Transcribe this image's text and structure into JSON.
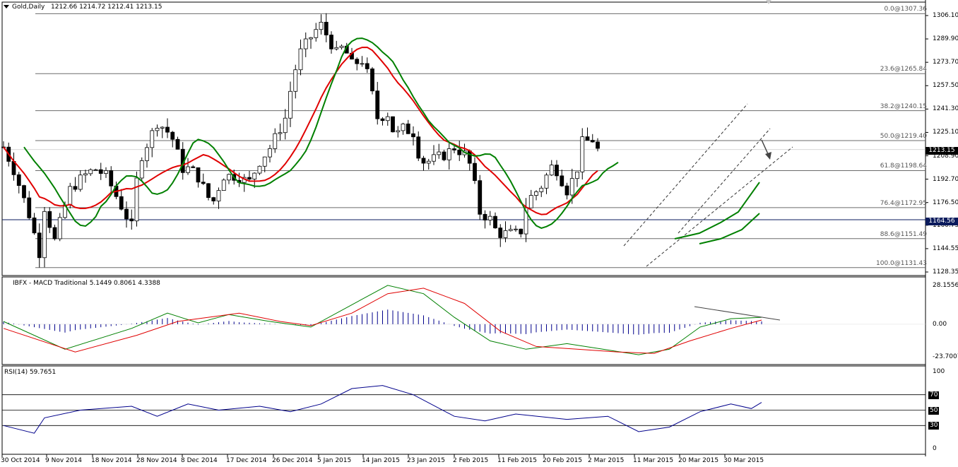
{
  "header": {
    "symbol": "Gold,Daily",
    "ohlc": "1212.66 1214.72 1212.41 1213.15"
  },
  "price_axis": {
    "ticks": [
      "1306.10",
      "1289.90",
      "1273.70",
      "1257.50",
      "1241.30",
      "1225.10",
      "1208.90",
      "1192.70",
      "1176.50",
      "1160.75",
      "1144.55",
      "1128.35"
    ],
    "current_price": "1213.15",
    "horizontal_line_price": "1164.56"
  },
  "fib_levels": [
    {
      "label": "0.0@1307.36",
      "value": 1307.36
    },
    {
      "label": "23.6@1265.84",
      "value": 1265.84
    },
    {
      "label": "38.2@1240.15",
      "value": 1240.15
    },
    {
      "label": "50.0@1219.40",
      "value": 1219.4
    },
    {
      "label": "61.8@1198.64",
      "value": 1198.64
    },
    {
      "label": "76.4@1172.95",
      "value": 1172.95
    },
    {
      "label": "88.6@1151.49",
      "value": 1151.49
    },
    {
      "label": "100.0@1131.43",
      "value": 1131.43
    }
  ],
  "macd_pane": {
    "title": "IBFX - MACD Traditional 5.1449 0.8061 4.3388",
    "ticks": [
      "28.1556",
      "0.00",
      "-23.7007"
    ]
  },
  "rsi_pane": {
    "title": "RSI(14) 59.7651",
    "ticks": [
      "100",
      "70",
      "50",
      "30",
      "0"
    ]
  },
  "date_axis": [
    "30 Oct 2014",
    "9 Nov 2014",
    "18 Nov 2014",
    "28 Nov 2014",
    "8 Dec 2014",
    "17 Dec 2014",
    "26 Dec 2014",
    "5 Jan 2015",
    "14 Jan 2015",
    "23 Jan 2015",
    "2 Feb 2015",
    "11 Feb 2015",
    "20 Feb 2015",
    "2 Mar 2015",
    "11 Mar 2015",
    "20 Mar 2015",
    "30 Mar 2015"
  ],
  "colors": {
    "fast_ma": "#e00000",
    "slow_ma": "#008000",
    "ma_flat": "#ffff00",
    "macd_line": "#008000",
    "signal_line": "#e00000",
    "histogram": "#00008b",
    "rsi_line": "#00008b"
  },
  "chart_data": [
    {
      "type": "candlestick",
      "title": "Gold,Daily",
      "ylim": [
        1125,
        1315
      ],
      "close_path": [
        {
          "x": "2014-10-27",
          "y": 1215
        },
        {
          "x": "2014-10-30",
          "y": 1198
        },
        {
          "x": "2014-11-03",
          "y": 1168
        },
        {
          "x": "2014-11-06",
          "y": 1140
        },
        {
          "x": "2014-11-07",
          "y": 1175
        },
        {
          "x": "2014-11-10",
          "y": 1150
        },
        {
          "x": "2014-11-14",
          "y": 1185
        },
        {
          "x": "2014-11-18",
          "y": 1195
        },
        {
          "x": "2014-11-21",
          "y": 1200
        },
        {
          "x": "2014-11-24",
          "y": 1195
        },
        {
          "x": "2014-11-28",
          "y": 1175
        },
        {
          "x": "2014-12-01",
          "y": 1160
        },
        {
          "x": "2014-12-03",
          "y": 1205
        },
        {
          "x": "2014-12-08",
          "y": 1232
        },
        {
          "x": "2014-12-10",
          "y": 1228
        },
        {
          "x": "2014-12-12",
          "y": 1222
        },
        {
          "x": "2014-12-15",
          "y": 1200
        },
        {
          "x": "2014-12-17",
          "y": 1200
        },
        {
          "x": "2014-12-19",
          "y": 1195
        },
        {
          "x": "2014-12-23",
          "y": 1175
        },
        {
          "x": "2014-12-26",
          "y": 1195
        },
        {
          "x": "2014-12-30",
          "y": 1195
        },
        {
          "x": "2015-01-02",
          "y": 1190
        },
        {
          "x": "2015-01-05",
          "y": 1205
        },
        {
          "x": "2015-01-08",
          "y": 1215
        },
        {
          "x": "2015-01-12",
          "y": 1235
        },
        {
          "x": "2015-01-14",
          "y": 1262
        },
        {
          "x": "2015-01-16",
          "y": 1280
        },
        {
          "x": "2015-01-20",
          "y": 1295
        },
        {
          "x": "2015-01-22",
          "y": 1300
        },
        {
          "x": "2015-01-23",
          "y": 1294
        },
        {
          "x": "2015-01-26",
          "y": 1280
        },
        {
          "x": "2015-01-28",
          "y": 1285
        },
        {
          "x": "2015-01-30",
          "y": 1272
        },
        {
          "x": "2015-02-02",
          "y": 1275
        },
        {
          "x": "2015-02-04",
          "y": 1262
        },
        {
          "x": "2015-02-06",
          "y": 1235
        },
        {
          "x": "2015-02-09",
          "y": 1238
        },
        {
          "x": "2015-02-11",
          "y": 1222
        },
        {
          "x": "2015-02-13",
          "y": 1228
        },
        {
          "x": "2015-02-16",
          "y": 1225
        },
        {
          "x": "2015-02-18",
          "y": 1205
        },
        {
          "x": "2015-02-20",
          "y": 1205
        },
        {
          "x": "2015-02-23",
          "y": 1208
        },
        {
          "x": "2015-02-25",
          "y": 1210
        },
        {
          "x": "2015-02-27",
          "y": 1215
        },
        {
          "x": "2015-03-02",
          "y": 1210
        },
        {
          "x": "2015-03-04",
          "y": 1200
        },
        {
          "x": "2015-03-06",
          "y": 1170
        },
        {
          "x": "2015-03-09",
          "y": 1165
        },
        {
          "x": "2015-03-11",
          "y": 1155
        },
        {
          "x": "2015-03-13",
          "y": 1155
        },
        {
          "x": "2015-03-16",
          "y": 1155
        },
        {
          "x": "2015-03-17",
          "y": 1148
        },
        {
          "x": "2015-03-18",
          "y": 1170
        },
        {
          "x": "2015-03-20",
          "y": 1180
        },
        {
          "x": "2015-03-23",
          "y": 1188
        },
        {
          "x": "2015-03-25",
          "y": 1198
        },
        {
          "x": "2015-03-26",
          "y": 1202
        },
        {
          "x": "2015-03-27",
          "y": 1200
        },
        {
          "x": "2015-03-30",
          "y": 1185
        },
        {
          "x": "2015-03-31",
          "y": 1185
        },
        {
          "x": "2015-04-01",
          "y": 1202
        },
        {
          "x": "2015-04-02",
          "y": 1200
        },
        {
          "x": "2015-04-03",
          "y": 1218
        },
        {
          "x": "2015-04-06",
          "y": 1220
        },
        {
          "x": "2015-04-07",
          "y": 1213
        }
      ]
    },
    {
      "type": "line",
      "title": "IBFX - MACD Traditional 5.1449 0.8061 4.3388",
      "ylim": [
        -26,
        30
      ],
      "series": [
        {
          "values": [
            [
              0,
              2
            ],
            [
              12,
              -18
            ],
            [
              25,
              -3
            ],
            [
              32,
              8
            ],
            [
              38,
              1
            ],
            [
              44,
              7
            ],
            [
              52,
              2
            ],
            [
              60,
              -2
            ],
            [
              68,
              14
            ],
            [
              75,
              28
            ],
            [
              82,
              22
            ],
            [
              88,
              5
            ],
            [
              95,
              -12
            ],
            [
              102,
              -18
            ],
            [
              110,
              -14
            ],
            [
              117,
              -18
            ],
            [
              124,
              -22
            ],
            [
              130,
              -18
            ],
            [
              136,
              -2
            ],
            [
              142,
              4
            ],
            [
              148,
              5
            ]
          ]
        },
        {
          "values": [
            [
              0,
              -3
            ],
            [
              14,
              -20
            ],
            [
              26,
              -8
            ],
            [
              34,
              2
            ],
            [
              40,
              5
            ],
            [
              46,
              8
            ],
            [
              54,
              2
            ],
            [
              60,
              -1
            ],
            [
              68,
              8
            ],
            [
              75,
              22
            ],
            [
              82,
              26
            ],
            [
              90,
              15
            ],
            [
              97,
              -5
            ],
            [
              104,
              -16
            ],
            [
              112,
              -18
            ],
            [
              120,
              -20
            ],
            [
              127,
              -21
            ],
            [
              134,
              -12
            ],
            [
              142,
              -3
            ],
            [
              148,
              3
            ]
          ]
        }
      ]
    },
    {
      "type": "line",
      "title": "RSI(14) 59.7651",
      "ylim": [
        0,
        100
      ],
      "series": [
        {
          "values": [
            [
              0,
              30
            ],
            [
              6,
              20
            ],
            [
              8,
              40
            ],
            [
              15,
              50
            ],
            [
              25,
              55
            ],
            [
              30,
              42
            ],
            [
              36,
              58
            ],
            [
              42,
              50
            ],
            [
              50,
              55
            ],
            [
              56,
              48
            ],
            [
              62,
              58
            ],
            [
              68,
              78
            ],
            [
              74,
              82
            ],
            [
              80,
              70
            ],
            [
              88,
              42
            ],
            [
              94,
              36
            ],
            [
              100,
              45
            ],
            [
              110,
              38
            ],
            [
              118,
              42
            ],
            [
              124,
              22
            ],
            [
              130,
              28
            ],
            [
              136,
              48
            ],
            [
              142,
              58
            ],
            [
              146,
              52
            ],
            [
              148,
              60
            ]
          ]
        }
      ]
    }
  ]
}
